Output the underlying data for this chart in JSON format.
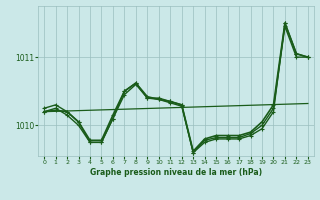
{
  "background_color": "#cbe8e8",
  "plot_background": "#cbe8e8",
  "line_color": "#1a5c1a",
  "grid_color": "#9bbfbf",
  "title": "Graphe pression niveau de la mer (hPa)",
  "title_color": "#1a5c1a",
  "xlim": [
    -0.5,
    23.5
  ],
  "ylim": [
    1009.55,
    1011.75
  ],
  "yticks": [
    1010,
    1011
  ],
  "xticks": [
    0,
    1,
    2,
    3,
    4,
    5,
    6,
    7,
    8,
    9,
    10,
    11,
    12,
    13,
    14,
    15,
    16,
    17,
    18,
    19,
    20,
    21,
    22,
    23
  ],
  "series": [
    {
      "x": [
        0,
        1,
        2,
        3,
        4,
        5,
        6,
        7,
        8,
        9,
        10,
        11,
        12,
        13,
        14,
        15,
        16,
        17,
        18,
        19,
        20,
        21,
        22,
        23
      ],
      "y": [
        1010.25,
        1010.3,
        1010.2,
        1010.05,
        1009.75,
        1009.75,
        1010.1,
        1010.45,
        1010.6,
        1010.4,
        1010.4,
        1010.35,
        1010.3,
        1009.6,
        1009.75,
        1009.8,
        1009.8,
        1009.8,
        1009.85,
        1009.95,
        1010.2,
        1011.5,
        1011.05,
        1011.0
      ],
      "linewidth": 1.0,
      "marker": true
    },
    {
      "x": [
        0,
        1,
        2,
        3,
        4,
        5,
        6,
        7,
        8,
        9,
        10,
        11,
        12,
        13,
        14,
        15,
        16,
        17,
        18,
        19,
        20,
        21,
        22,
        23
      ],
      "y": [
        1010.2,
        1010.25,
        1010.15,
        1010.0,
        1009.75,
        1009.75,
        1010.1,
        1010.5,
        1010.62,
        1010.4,
        1010.38,
        1010.33,
        1010.28,
        1009.6,
        1009.78,
        1009.82,
        1009.82,
        1009.82,
        1009.88,
        1010.0,
        1010.25,
        1011.45,
        1011.0,
        1011.0
      ],
      "linewidth": 1.0,
      "marker": true
    },
    {
      "x": [
        0,
        23
      ],
      "y": [
        1010.2,
        1010.32
      ],
      "linewidth": 0.9,
      "marker": false
    },
    {
      "x": [
        0,
        1,
        2,
        3,
        4,
        5,
        6,
        7,
        8,
        9,
        10,
        11,
        12,
        13,
        14,
        15,
        16,
        17,
        18,
        19,
        20,
        21,
        22,
        23
      ],
      "y": [
        1010.2,
        1010.22,
        1010.2,
        1010.05,
        1009.78,
        1009.78,
        1010.15,
        1010.5,
        1010.62,
        1010.42,
        1010.38,
        1010.35,
        1010.3,
        1009.62,
        1009.8,
        1009.85,
        1009.85,
        1009.85,
        1009.9,
        1010.05,
        1010.3,
        1011.5,
        1011.05,
        1011.0
      ],
      "linewidth": 1.2,
      "marker": true
    }
  ]
}
